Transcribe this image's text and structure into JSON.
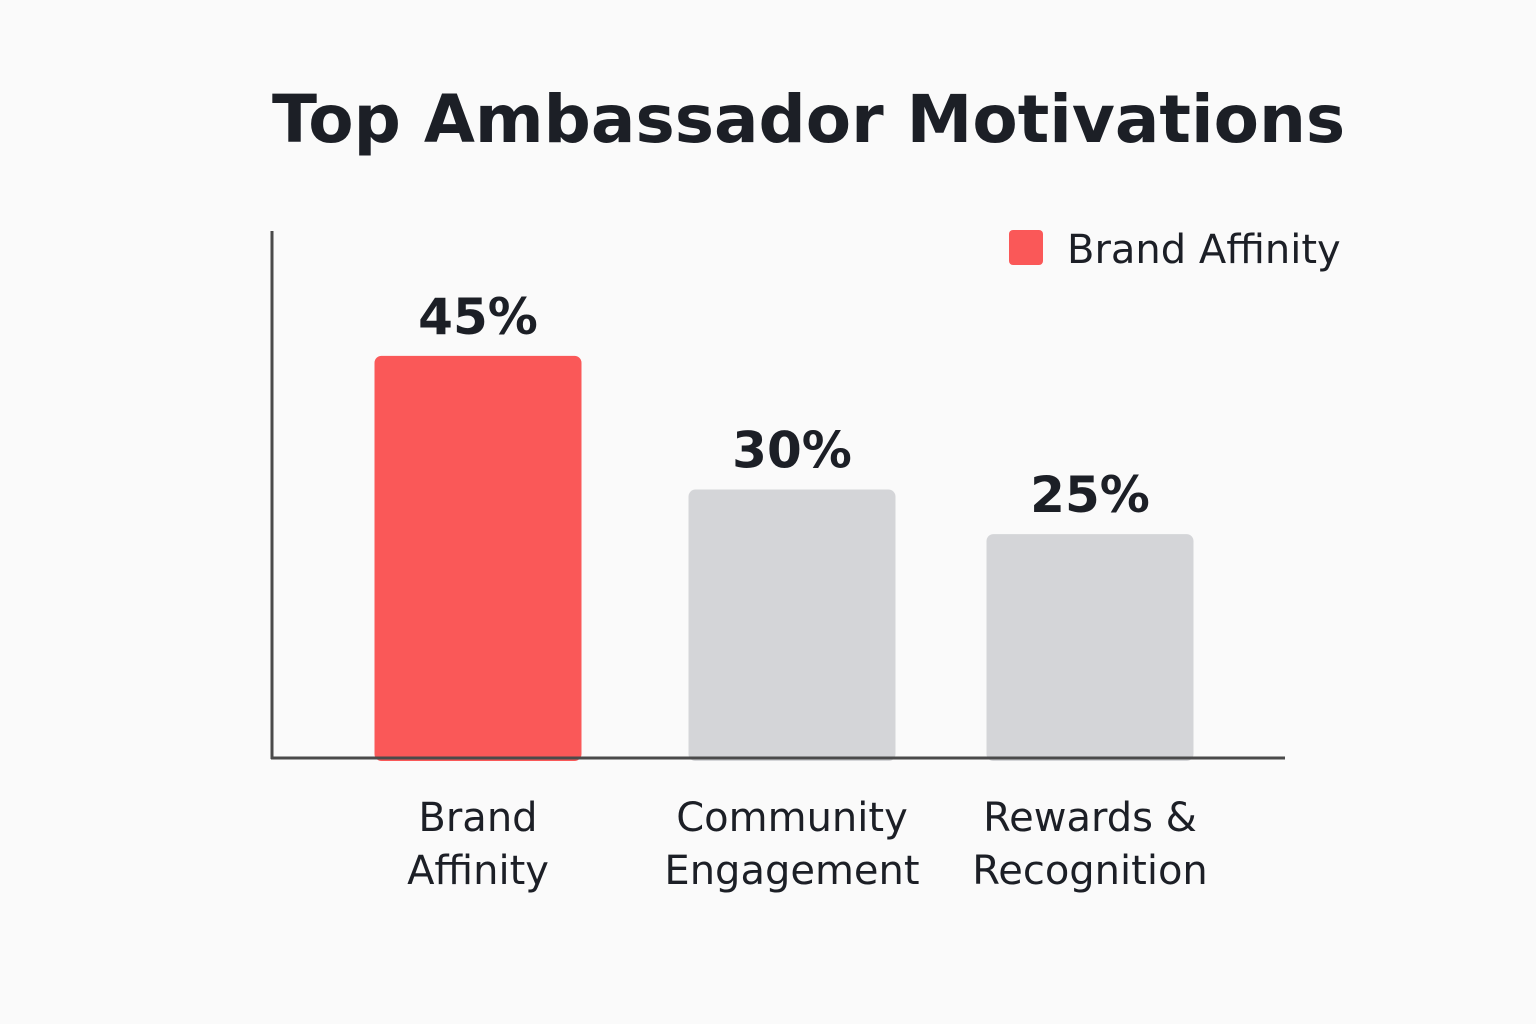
{
  "chart_data": {
    "type": "bar",
    "title": "Top Ambassador Motivations",
    "categories": [
      [
        "Brand",
        "Affinity"
      ],
      [
        "Community",
        "Engagement"
      ],
      [
        "Rewards &",
        "Recognition"
      ]
    ],
    "values": [
      45,
      30,
      25
    ],
    "value_labels": [
      "45%",
      "30%",
      "25%"
    ],
    "ylim": [
      0,
      59
    ],
    "grid": false,
    "legend": {
      "position": "top-right",
      "entries": [
        {
          "label": "Brand Affinity",
          "color": "#fa5858"
        }
      ]
    },
    "colors": {
      "highlight": "#fa5858",
      "default": "#d4d5d8",
      "axis": "#4a4a4a",
      "text": "#1c1f26"
    },
    "highlight_index": 0
  }
}
